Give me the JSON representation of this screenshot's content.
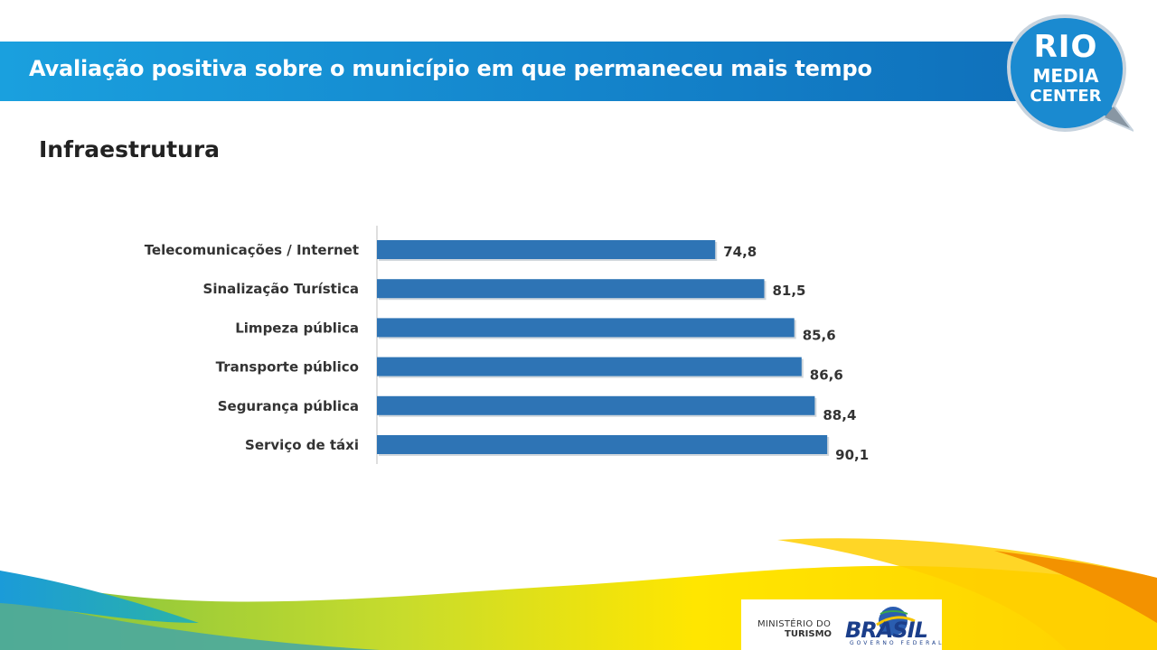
{
  "header": {
    "title": "Avaliação positiva sobre o município em que permaneceu mais tempo"
  },
  "logo": {
    "line1": "RIO",
    "line2": "MEDIA",
    "line3": "CENTER"
  },
  "section": {
    "title": "Infraestrutura"
  },
  "chart_data": {
    "type": "bar",
    "orientation": "horizontal",
    "categories": [
      "Telecomunicações / Internet",
      "Sinalização Turística",
      "Limpeza pública",
      "Transporte público",
      "Segurança pública",
      "Serviço de táxi"
    ],
    "values": [
      74.8,
      81.5,
      85.6,
      86.6,
      88.4,
      90.1
    ],
    "labels": [
      "74,8",
      "81,5",
      "85,6",
      "86,6",
      "88,4",
      "90,1"
    ],
    "xlim": [
      0,
      100
    ],
    "grid": false,
    "bar_color": "#2e74b5"
  },
  "footer": {
    "ministry_line1": "MINISTÉRIO DO",
    "ministry_line2": "TURISMO",
    "brasil_word": "BRASIL",
    "brasil_sub": "GOVERNO FEDERAL"
  },
  "colors": {
    "banner": "#1485cc",
    "accent_yellow": "#ffe600",
    "accent_orange": "#f39200",
    "accent_green": "#8cc63f"
  }
}
